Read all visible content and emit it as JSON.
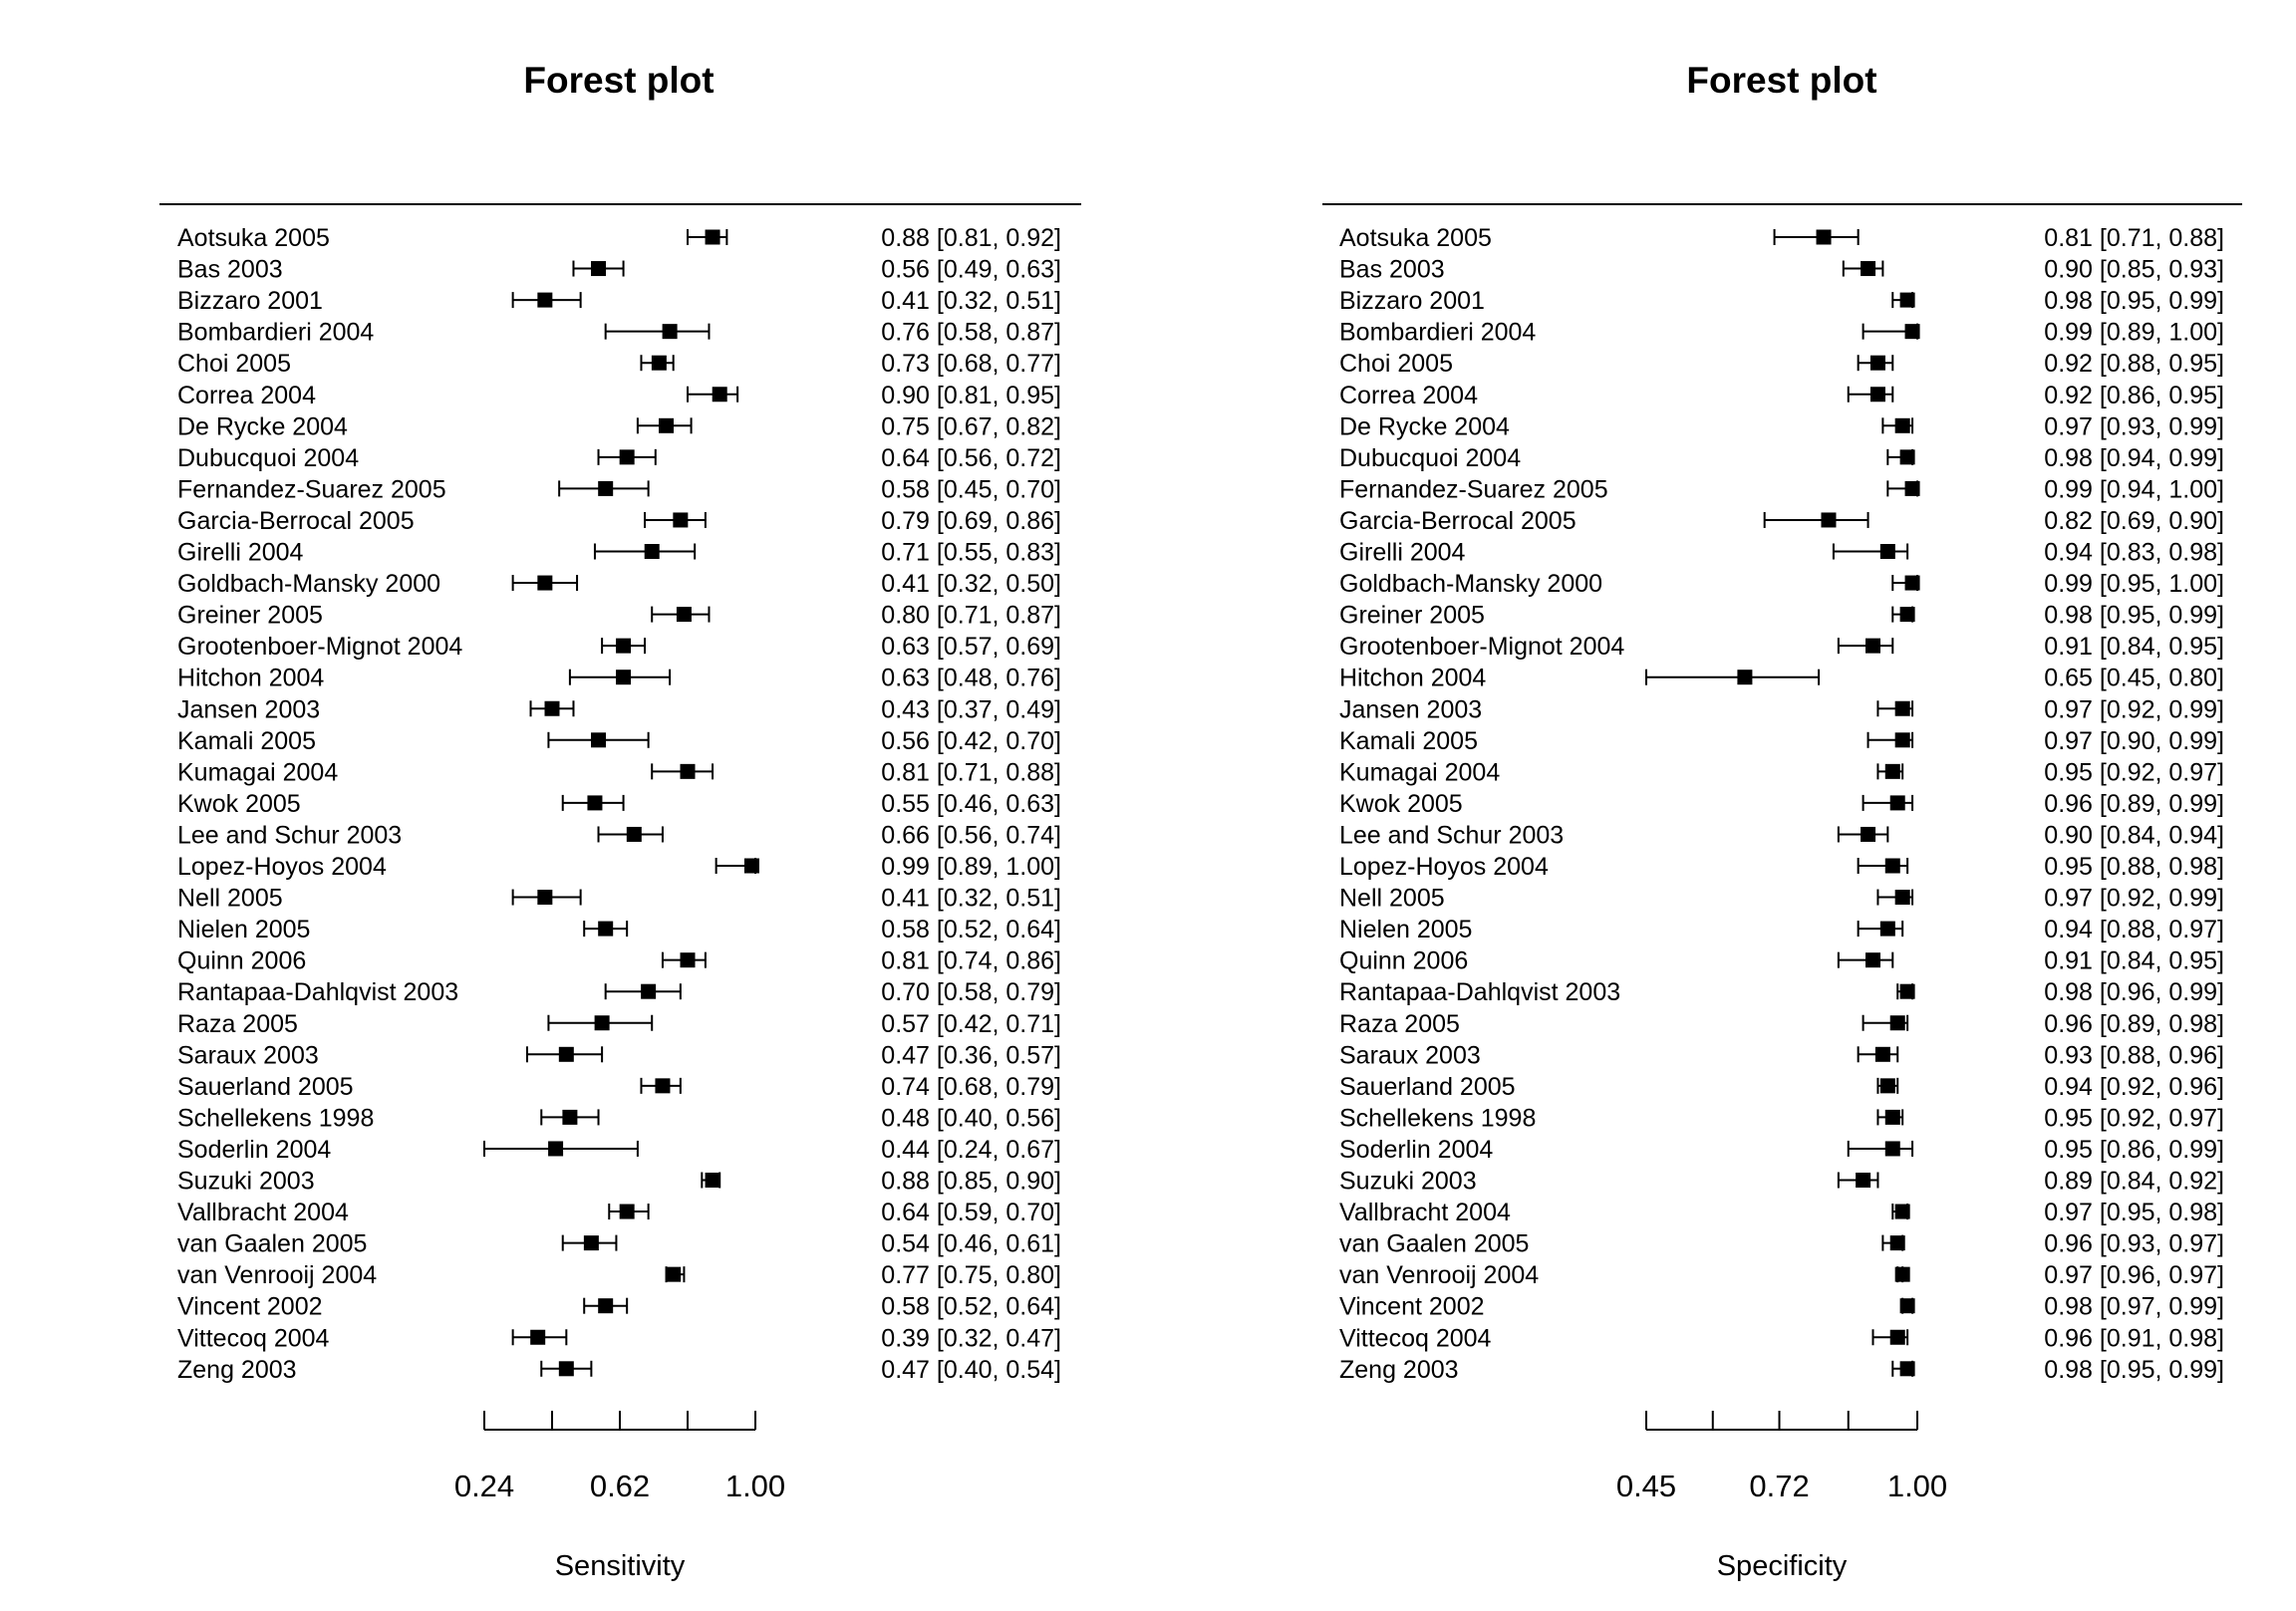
{
  "chart_data": [
    {
      "type": "forest",
      "title": "Forest plot",
      "xlabel": "Sensitivity",
      "ticks": [
        0.24,
        0.43,
        0.62,
        0.81,
        1.0
      ],
      "tick_labels": [
        "0.24",
        "",
        "0.62",
        "",
        "1.00"
      ],
      "xlim": [
        0.24,
        1.0
      ],
      "studies": [
        {
          "label": "Aotsuka 2005",
          "est": 0.88,
          "lo": 0.81,
          "hi": 0.92,
          "text": "0.88 [0.81, 0.92]"
        },
        {
          "label": "Bas 2003",
          "est": 0.56,
          "lo": 0.49,
          "hi": 0.63,
          "text": "0.56 [0.49, 0.63]"
        },
        {
          "label": "Bizzaro 2001",
          "est": 0.41,
          "lo": 0.32,
          "hi": 0.51,
          "text": "0.41 [0.32, 0.51]"
        },
        {
          "label": "Bombardieri 2004",
          "est": 0.76,
          "lo": 0.58,
          "hi": 0.87,
          "text": "0.76 [0.58, 0.87]"
        },
        {
          "label": "Choi 2005",
          "est": 0.73,
          "lo": 0.68,
          "hi": 0.77,
          "text": "0.73 [0.68, 0.77]"
        },
        {
          "label": "Correa 2004",
          "est": 0.9,
          "lo": 0.81,
          "hi": 0.95,
          "text": "0.90 [0.81, 0.95]"
        },
        {
          "label": "De Rycke 2004",
          "est": 0.75,
          "lo": 0.67,
          "hi": 0.82,
          "text": "0.75 [0.67, 0.82]"
        },
        {
          "label": "Dubucquoi 2004",
          "est": 0.64,
          "lo": 0.56,
          "hi": 0.72,
          "text": "0.64 [0.56, 0.72]"
        },
        {
          "label": "Fernandez-Suarez 2005",
          "est": 0.58,
          "lo": 0.45,
          "hi": 0.7,
          "text": "0.58 [0.45, 0.70]"
        },
        {
          "label": "Garcia-Berrocal 2005",
          "est": 0.79,
          "lo": 0.69,
          "hi": 0.86,
          "text": "0.79 [0.69, 0.86]"
        },
        {
          "label": "Girelli 2004",
          "est": 0.71,
          "lo": 0.55,
          "hi": 0.83,
          "text": "0.71 [0.55, 0.83]"
        },
        {
          "label": "Goldbach-Mansky 2000",
          "est": 0.41,
          "lo": 0.32,
          "hi": 0.5,
          "text": "0.41 [0.32, 0.50]"
        },
        {
          "label": "Greiner 2005",
          "est": 0.8,
          "lo": 0.71,
          "hi": 0.87,
          "text": "0.80 [0.71, 0.87]"
        },
        {
          "label": "Grootenboer-Mignot 2004",
          "est": 0.63,
          "lo": 0.57,
          "hi": 0.69,
          "text": "0.63 [0.57, 0.69]"
        },
        {
          "label": "Hitchon 2004",
          "est": 0.63,
          "lo": 0.48,
          "hi": 0.76,
          "text": "0.63 [0.48, 0.76]"
        },
        {
          "label": "Jansen 2003",
          "est": 0.43,
          "lo": 0.37,
          "hi": 0.49,
          "text": "0.43 [0.37, 0.49]"
        },
        {
          "label": "Kamali 2005",
          "est": 0.56,
          "lo": 0.42,
          "hi": 0.7,
          "text": "0.56 [0.42, 0.70]"
        },
        {
          "label": "Kumagai 2004",
          "est": 0.81,
          "lo": 0.71,
          "hi": 0.88,
          "text": "0.81 [0.71, 0.88]"
        },
        {
          "label": "Kwok 2005",
          "est": 0.55,
          "lo": 0.46,
          "hi": 0.63,
          "text": "0.55 [0.46, 0.63]"
        },
        {
          "label": "Lee and Schur 2003",
          "est": 0.66,
          "lo": 0.56,
          "hi": 0.74,
          "text": "0.66 [0.56, 0.74]"
        },
        {
          "label": "Lopez-Hoyos 2004",
          "est": 0.99,
          "lo": 0.89,
          "hi": 1.0,
          "text": "0.99 [0.89, 1.00]"
        },
        {
          "label": "Nell 2005",
          "est": 0.41,
          "lo": 0.32,
          "hi": 0.51,
          "text": "0.41 [0.32, 0.51]"
        },
        {
          "label": "Nielen 2005",
          "est": 0.58,
          "lo": 0.52,
          "hi": 0.64,
          "text": "0.58 [0.52, 0.64]"
        },
        {
          "label": "Quinn 2006",
          "est": 0.81,
          "lo": 0.74,
          "hi": 0.86,
          "text": "0.81 [0.74, 0.86]"
        },
        {
          "label": "Rantapaa-Dahlqvist 2003",
          "est": 0.7,
          "lo": 0.58,
          "hi": 0.79,
          "text": "0.70 [0.58, 0.79]"
        },
        {
          "label": "Raza 2005",
          "est": 0.57,
          "lo": 0.42,
          "hi": 0.71,
          "text": "0.57 [0.42, 0.71]"
        },
        {
          "label": "Saraux 2003",
          "est": 0.47,
          "lo": 0.36,
          "hi": 0.57,
          "text": "0.47 [0.36, 0.57]"
        },
        {
          "label": "Sauerland 2005",
          "est": 0.74,
          "lo": 0.68,
          "hi": 0.79,
          "text": "0.74 [0.68, 0.79]"
        },
        {
          "label": "Schellekens 1998",
          "est": 0.48,
          "lo": 0.4,
          "hi": 0.56,
          "text": "0.48 [0.40, 0.56]"
        },
        {
          "label": "Soderlin 2004",
          "est": 0.44,
          "lo": 0.24,
          "hi": 0.67,
          "text": "0.44 [0.24, 0.67]"
        },
        {
          "label": "Suzuki 2003",
          "est": 0.88,
          "lo": 0.85,
          "hi": 0.9,
          "text": "0.88 [0.85, 0.90]"
        },
        {
          "label": "Vallbracht 2004",
          "est": 0.64,
          "lo": 0.59,
          "hi": 0.7,
          "text": "0.64 [0.59, 0.70]"
        },
        {
          "label": "van Gaalen 2005",
          "est": 0.54,
          "lo": 0.46,
          "hi": 0.61,
          "text": "0.54 [0.46, 0.61]"
        },
        {
          "label": "van Venrooij 2004",
          "est": 0.77,
          "lo": 0.75,
          "hi": 0.8,
          "text": "0.77 [0.75, 0.80]"
        },
        {
          "label": "Vincent 2002",
          "est": 0.58,
          "lo": 0.52,
          "hi": 0.64,
          "text": "0.58 [0.52, 0.64]"
        },
        {
          "label": "Vittecoq 2004",
          "est": 0.39,
          "lo": 0.32,
          "hi": 0.47,
          "text": "0.39 [0.32, 0.47]"
        },
        {
          "label": "Zeng 2003",
          "est": 0.47,
          "lo": 0.4,
          "hi": 0.54,
          "text": "0.47 [0.40, 0.54]"
        }
      ]
    },
    {
      "type": "forest",
      "title": "Forest plot",
      "xlabel": "Specificity",
      "ticks": [
        0.45,
        0.585,
        0.72,
        0.86,
        1.0
      ],
      "tick_labels": [
        "0.45",
        "",
        "0.72",
        "",
        "1.00"
      ],
      "xlim": [
        0.45,
        1.0
      ],
      "studies": [
        {
          "label": "Aotsuka 2005",
          "est": 0.81,
          "lo": 0.71,
          "hi": 0.88,
          "text": "0.81 [0.71, 0.88]"
        },
        {
          "label": "Bas 2003",
          "est": 0.9,
          "lo": 0.85,
          "hi": 0.93,
          "text": "0.90 [0.85, 0.93]"
        },
        {
          "label": "Bizzaro 2001",
          "est": 0.98,
          "lo": 0.95,
          "hi": 0.99,
          "text": "0.98 [0.95, 0.99]"
        },
        {
          "label": "Bombardieri 2004",
          "est": 0.99,
          "lo": 0.89,
          "hi": 1.0,
          "text": "0.99 [0.89, 1.00]"
        },
        {
          "label": "Choi 2005",
          "est": 0.92,
          "lo": 0.88,
          "hi": 0.95,
          "text": "0.92 [0.88, 0.95]"
        },
        {
          "label": "Correa 2004",
          "est": 0.92,
          "lo": 0.86,
          "hi": 0.95,
          "text": "0.92 [0.86, 0.95]"
        },
        {
          "label": "De Rycke 2004",
          "est": 0.97,
          "lo": 0.93,
          "hi": 0.99,
          "text": "0.97 [0.93, 0.99]"
        },
        {
          "label": "Dubucquoi 2004",
          "est": 0.98,
          "lo": 0.94,
          "hi": 0.99,
          "text": "0.98 [0.94, 0.99]"
        },
        {
          "label": "Fernandez-Suarez 2005",
          "est": 0.99,
          "lo": 0.94,
          "hi": 1.0,
          "text": "0.99 [0.94, 1.00]"
        },
        {
          "label": "Garcia-Berrocal 2005",
          "est": 0.82,
          "lo": 0.69,
          "hi": 0.9,
          "text": "0.82 [0.69, 0.90]"
        },
        {
          "label": "Girelli 2004",
          "est": 0.94,
          "lo": 0.83,
          "hi": 0.98,
          "text": "0.94 [0.83, 0.98]"
        },
        {
          "label": "Goldbach-Mansky 2000",
          "est": 0.99,
          "lo": 0.95,
          "hi": 1.0,
          "text": "0.99 [0.95, 1.00]"
        },
        {
          "label": "Greiner 2005",
          "est": 0.98,
          "lo": 0.95,
          "hi": 0.99,
          "text": "0.98 [0.95, 0.99]"
        },
        {
          "label": "Grootenboer-Mignot 2004",
          "est": 0.91,
          "lo": 0.84,
          "hi": 0.95,
          "text": "0.91 [0.84, 0.95]"
        },
        {
          "label": "Hitchon 2004",
          "est": 0.65,
          "lo": 0.45,
          "hi": 0.8,
          "text": "0.65 [0.45, 0.80]"
        },
        {
          "label": "Jansen 2003",
          "est": 0.97,
          "lo": 0.92,
          "hi": 0.99,
          "text": "0.97 [0.92, 0.99]"
        },
        {
          "label": "Kamali 2005",
          "est": 0.97,
          "lo": 0.9,
          "hi": 0.99,
          "text": "0.97 [0.90, 0.99]"
        },
        {
          "label": "Kumagai 2004",
          "est": 0.95,
          "lo": 0.92,
          "hi": 0.97,
          "text": "0.95 [0.92, 0.97]"
        },
        {
          "label": "Kwok 2005",
          "est": 0.96,
          "lo": 0.89,
          "hi": 0.99,
          "text": "0.96 [0.89, 0.99]"
        },
        {
          "label": "Lee and Schur 2003",
          "est": 0.9,
          "lo": 0.84,
          "hi": 0.94,
          "text": "0.90 [0.84, 0.94]"
        },
        {
          "label": "Lopez-Hoyos 2004",
          "est": 0.95,
          "lo": 0.88,
          "hi": 0.98,
          "text": "0.95 [0.88, 0.98]"
        },
        {
          "label": "Nell 2005",
          "est": 0.97,
          "lo": 0.92,
          "hi": 0.99,
          "text": "0.97 [0.92, 0.99]"
        },
        {
          "label": "Nielen 2005",
          "est": 0.94,
          "lo": 0.88,
          "hi": 0.97,
          "text": "0.94 [0.88, 0.97]"
        },
        {
          "label": "Quinn 2006",
          "est": 0.91,
          "lo": 0.84,
          "hi": 0.95,
          "text": "0.91 [0.84, 0.95]"
        },
        {
          "label": "Rantapaa-Dahlqvist 2003",
          "est": 0.98,
          "lo": 0.96,
          "hi": 0.99,
          "text": "0.98 [0.96, 0.99]"
        },
        {
          "label": "Raza 2005",
          "est": 0.96,
          "lo": 0.89,
          "hi": 0.98,
          "text": "0.96 [0.89, 0.98]"
        },
        {
          "label": "Saraux 2003",
          "est": 0.93,
          "lo": 0.88,
          "hi": 0.96,
          "text": "0.93 [0.88, 0.96]"
        },
        {
          "label": "Sauerland 2005",
          "est": 0.94,
          "lo": 0.92,
          "hi": 0.96,
          "text": "0.94 [0.92, 0.96]"
        },
        {
          "label": "Schellekens 1998",
          "est": 0.95,
          "lo": 0.92,
          "hi": 0.97,
          "text": "0.95 [0.92, 0.97]"
        },
        {
          "label": "Soderlin 2004",
          "est": 0.95,
          "lo": 0.86,
          "hi": 0.99,
          "text": "0.95 [0.86, 0.99]"
        },
        {
          "label": "Suzuki 2003",
          "est": 0.89,
          "lo": 0.84,
          "hi": 0.92,
          "text": "0.89 [0.84, 0.92]"
        },
        {
          "label": "Vallbracht 2004",
          "est": 0.97,
          "lo": 0.95,
          "hi": 0.98,
          "text": "0.97 [0.95, 0.98]"
        },
        {
          "label": "van Gaalen 2005",
          "est": 0.96,
          "lo": 0.93,
          "hi": 0.97,
          "text": "0.96 [0.93, 0.97]"
        },
        {
          "label": "van Venrooij 2004",
          "est": 0.97,
          "lo": 0.96,
          "hi": 0.97,
          "text": "0.97 [0.96, 0.97]"
        },
        {
          "label": "Vincent 2002",
          "est": 0.98,
          "lo": 0.97,
          "hi": 0.99,
          "text": "0.98 [0.97, 0.99]"
        },
        {
          "label": "Vittecoq 2004",
          "est": 0.96,
          "lo": 0.91,
          "hi": 0.98,
          "text": "0.96 [0.91, 0.98]"
        },
        {
          "label": "Zeng 2003",
          "est": 0.98,
          "lo": 0.95,
          "hi": 0.99,
          "text": "0.98 [0.95, 0.99]"
        }
      ]
    }
  ]
}
